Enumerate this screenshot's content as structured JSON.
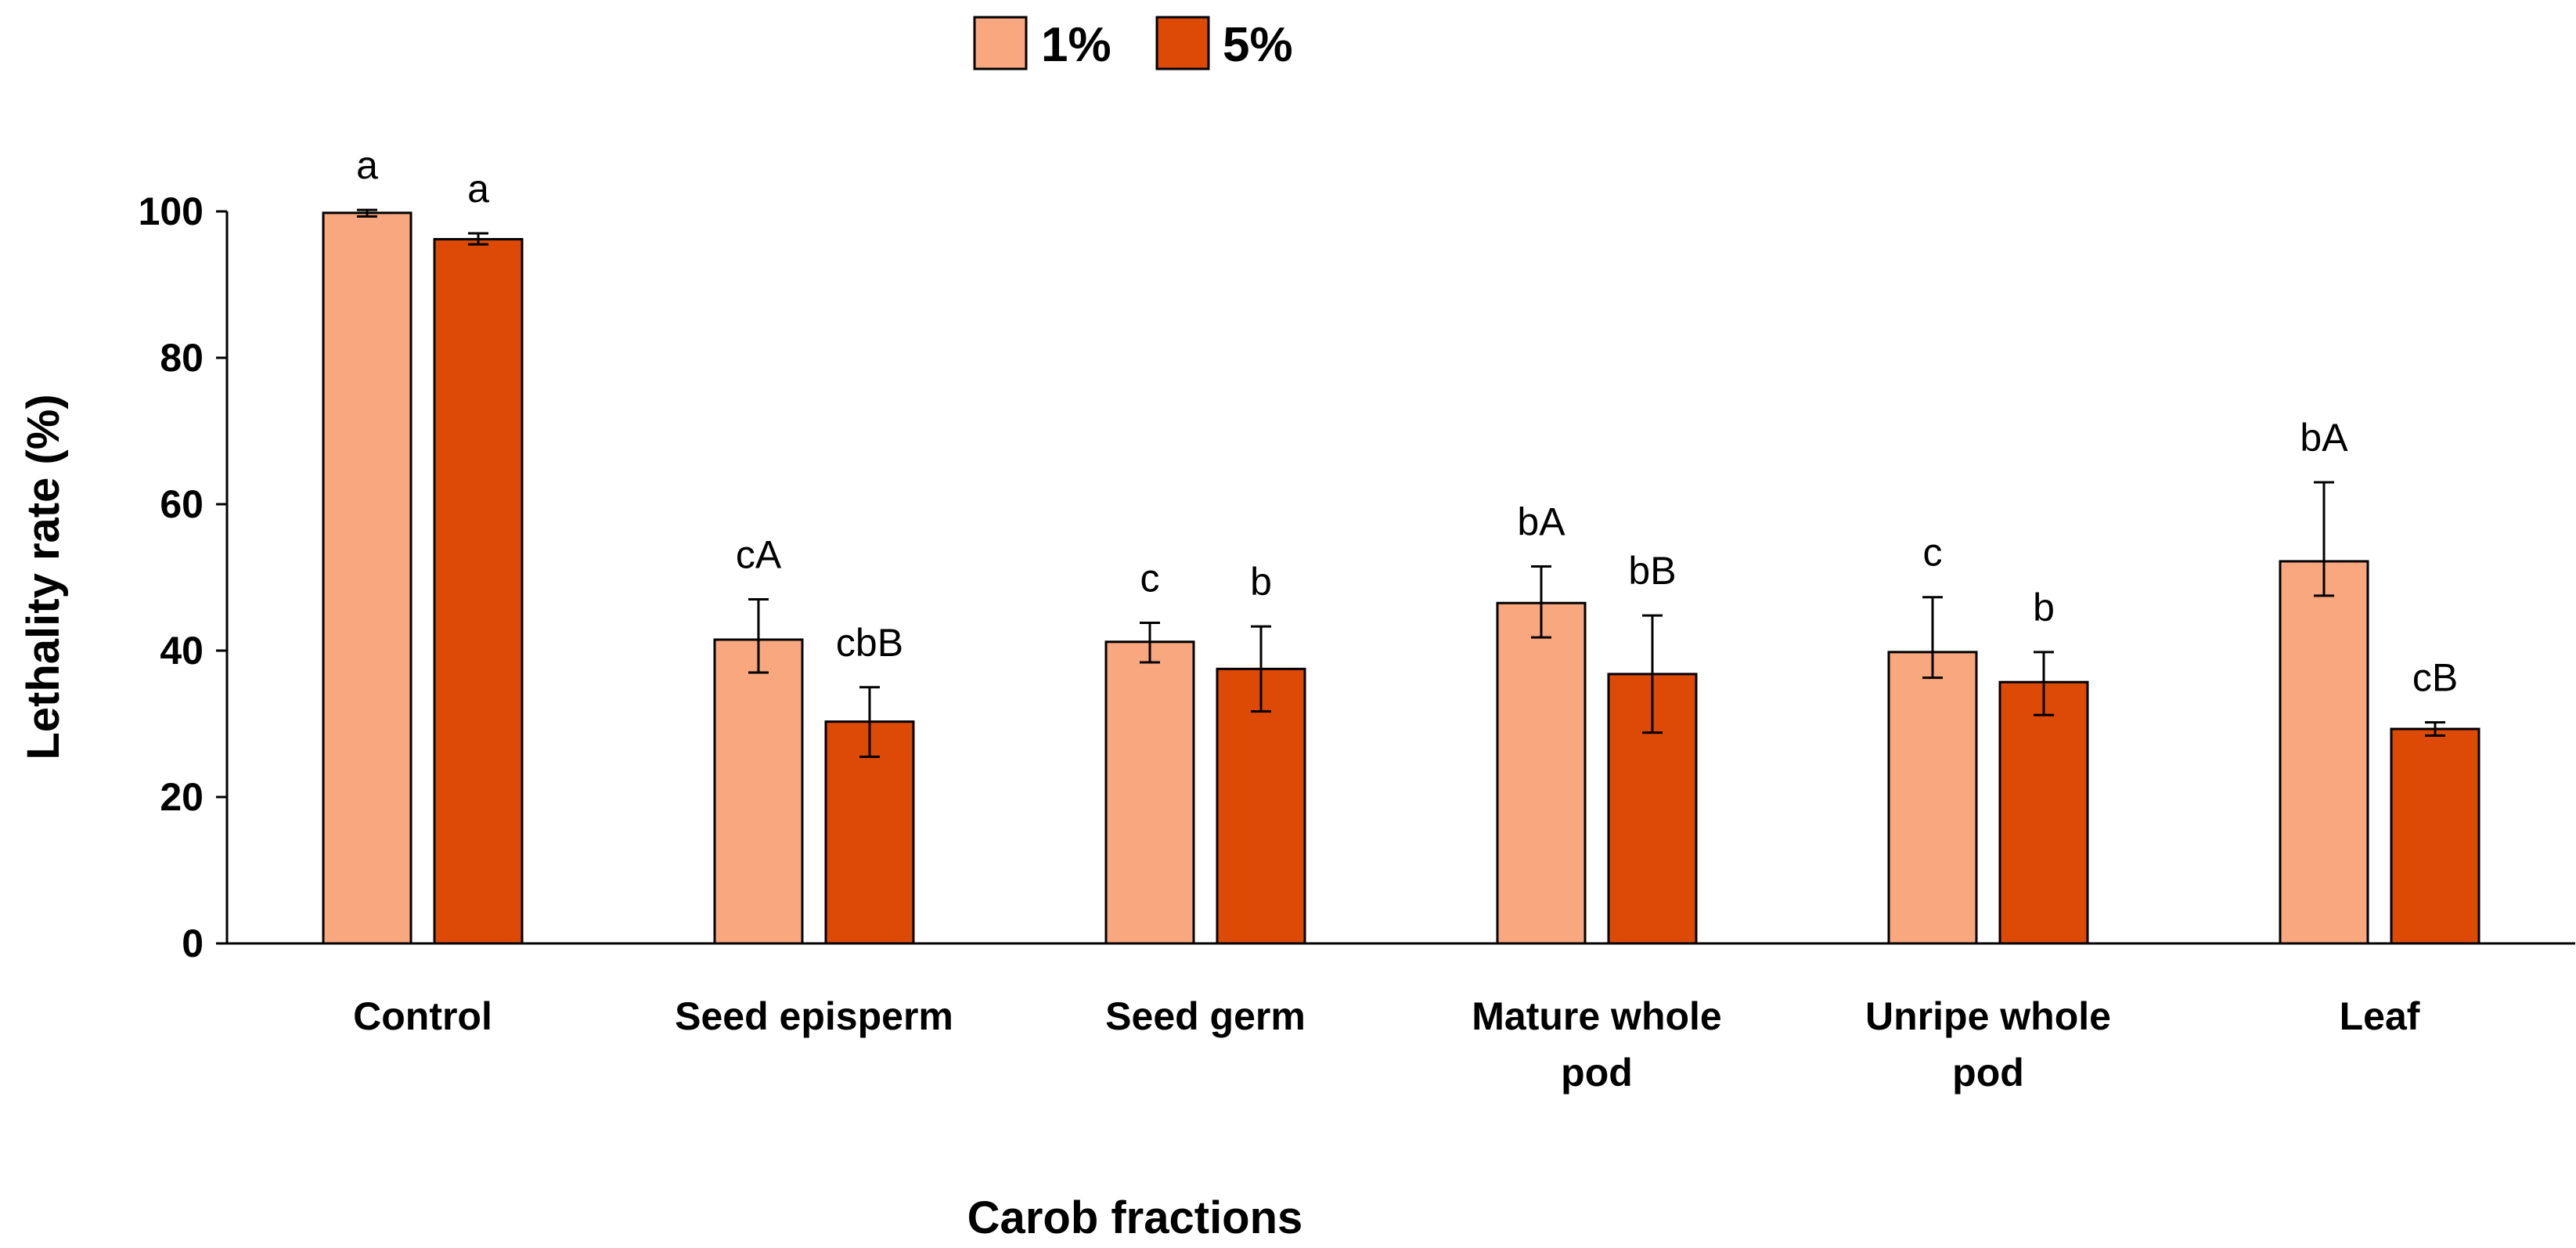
{
  "chart_data": {
    "type": "bar",
    "title": "",
    "xlabel": "Carob fractions",
    "ylabel": "Lethality rate (%)",
    "ylim": [
      0,
      100
    ],
    "yticks": [
      0,
      20,
      40,
      60,
      80,
      100
    ],
    "grid": false,
    "legend_position": "top-center",
    "categories": [
      [
        "Control"
      ],
      [
        "Seed episperm"
      ],
      [
        "Seed germ"
      ],
      [
        "Mature whole",
        "pod"
      ],
      [
        "Unripe whole",
        "pod"
      ],
      [
        "Leaf"
      ]
    ],
    "series": [
      {
        "name": "1%",
        "color": "#F9A77E",
        "values": [
          99.8,
          41.5,
          41.2,
          46.5,
          39.8,
          52.2
        ],
        "error_high": [
          100.2,
          47.0,
          43.8,
          51.5,
          47.3,
          63.0
        ],
        "error_low": [
          99.3,
          37.0,
          38.4,
          41.8,
          36.3,
          47.5
        ],
        "labels": [
          "a",
          "cA",
          "c",
          "bA",
          "c",
          "bA"
        ]
      },
      {
        "name": "5%",
        "color": "#DC4A05",
        "values": [
          96.2,
          30.3,
          37.5,
          36.8,
          35.7,
          29.3
        ],
        "error_high": [
          97.0,
          35.0,
          43.3,
          44.8,
          39.8,
          30.2
        ],
        "error_low": [
          95.5,
          25.5,
          31.7,
          28.8,
          31.2,
          28.4
        ],
        "labels": [
          "a",
          "cbB",
          "b",
          "bB",
          "b",
          "cB"
        ]
      }
    ]
  }
}
